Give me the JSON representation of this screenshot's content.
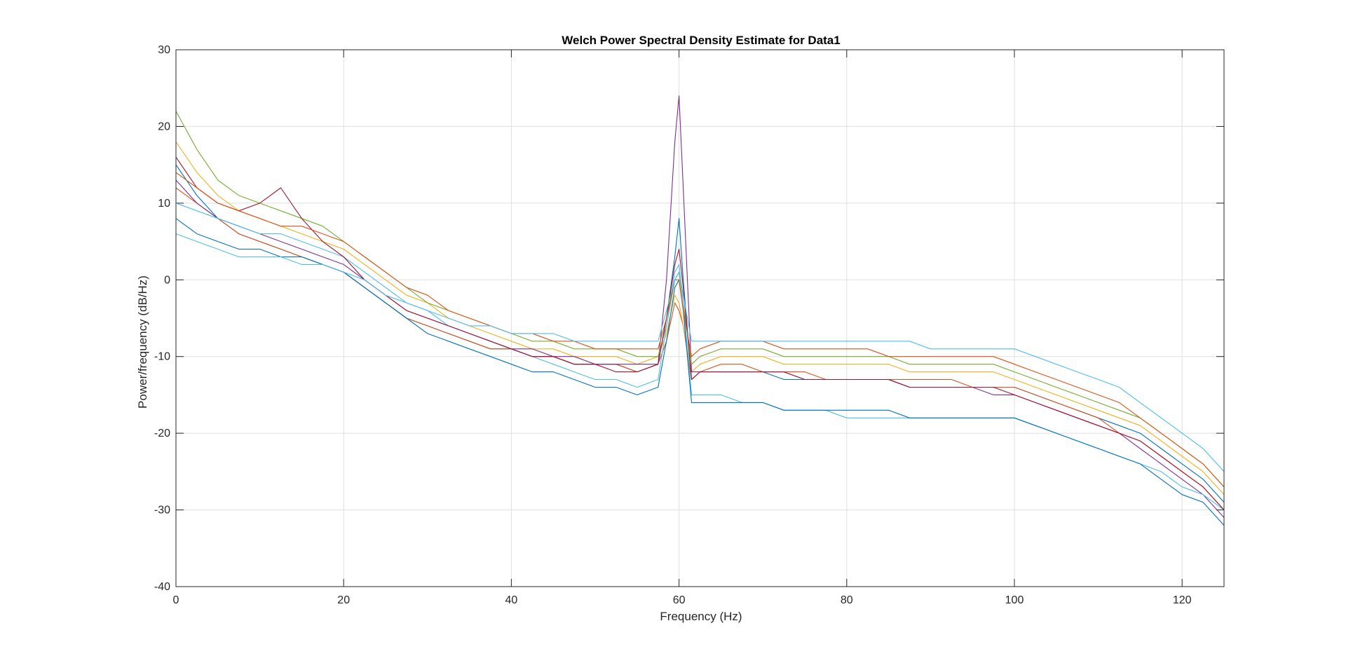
{
  "chart_data": {
    "type": "line",
    "title": "Welch Power Spectral Density Estimate for Data1",
    "xlabel": "Frequency (Hz)",
    "ylabel": "Power/frequency (dB/Hz)",
    "xlim": [
      0,
      125
    ],
    "ylim": [
      -40,
      30
    ],
    "xticks": [
      0,
      20,
      40,
      60,
      80,
      100,
      120
    ],
    "yticks": [
      -40,
      -30,
      -20,
      -10,
      0,
      10,
      20,
      30
    ],
    "grid": true,
    "legend": "none",
    "x": [
      0,
      2.5,
      5,
      7.5,
      10,
      12.5,
      15,
      17.5,
      20,
      22.5,
      25,
      27.5,
      30,
      32.5,
      35,
      37.5,
      40,
      42.5,
      45,
      47.5,
      50,
      52.5,
      55,
      57.5,
      58.5,
      59.5,
      60,
      60.5,
      61.5,
      62.5,
      65,
      67.5,
      70,
      72.5,
      75,
      77.5,
      80,
      82.5,
      85,
      87.5,
      90,
      92.5,
      95,
      97.5,
      100,
      102.5,
      105,
      107.5,
      110,
      112.5,
      115,
      117.5,
      120,
      122.5,
      125
    ],
    "series": [
      {
        "color": "#0072BD",
        "values": [
          15,
          11,
          8,
          6,
          5,
          4,
          3,
          2,
          1,
          -1,
          -3,
          -5,
          -6,
          -7,
          -8,
          -9,
          -9,
          -10,
          -10,
          -11,
          -11,
          -11,
          -12,
          -11,
          -5,
          3,
          8,
          0,
          -13,
          -12,
          -12,
          -12,
          -12,
          -13,
          -13,
          -13,
          -13,
          -13,
          -13,
          -14,
          -14,
          -14,
          -14,
          -14,
          -14,
          -15,
          -16,
          -17,
          -18,
          -19,
          -20,
          -22,
          -24,
          -26,
          -29
        ]
      },
      {
        "color": "#D95319",
        "values": [
          12,
          10,
          8,
          6,
          5,
          4,
          3,
          2,
          1,
          -1,
          -3,
          -5,
          -6,
          -7,
          -8,
          -9,
          -9,
          -10,
          -10,
          -11,
          -11,
          -11,
          -12,
          -11,
          -8,
          -3,
          -4,
          -6,
          -13,
          -12,
          -11,
          -11,
          -12,
          -12,
          -12,
          -13,
          -13,
          -13,
          -13,
          -13,
          -13,
          -13,
          -14,
          -14,
          -14,
          -15,
          -16,
          -17,
          -18,
          -20,
          -21,
          -23,
          -25,
          -27,
          -30
        ]
      },
      {
        "color": "#EDB120",
        "values": [
          18,
          14,
          11,
          9,
          8,
          7,
          6,
          5,
          4,
          2,
          0,
          -2,
          -3,
          -5,
          -6,
          -7,
          -8,
          -9,
          -9,
          -10,
          -10,
          -10,
          -11,
          -10,
          -7,
          -2,
          -3,
          -6,
          -12,
          -11,
          -10,
          -10,
          -10,
          -11,
          -11,
          -11,
          -11,
          -11,
          -11,
          -12,
          -12,
          -12,
          -12,
          -12,
          -13,
          -14,
          -15,
          -16,
          -17,
          -18,
          -19,
          -21,
          -23,
          -25,
          -28
        ]
      },
      {
        "color": "#7E2F8E",
        "values": [
          13,
          10,
          8,
          7,
          6,
          5,
          4,
          3,
          2,
          0,
          -2,
          -4,
          -5,
          -6,
          -7,
          -8,
          -9,
          -9,
          -10,
          -10,
          -11,
          -11,
          -11,
          -11,
          0,
          18,
          24,
          12,
          -12,
          -12,
          -12,
          -12,
          -12,
          -12,
          -13,
          -13,
          -13,
          -13,
          -13,
          -14,
          -14,
          -14,
          -14,
          -15,
          -15,
          -16,
          -17,
          -18,
          -19,
          -20,
          -22,
          -24,
          -26,
          -28,
          -31
        ]
      },
      {
        "color": "#77AC30",
        "values": [
          22,
          17,
          13,
          11,
          10,
          9,
          8,
          7,
          5,
          3,
          1,
          -1,
          -3,
          -4,
          -5,
          -6,
          -7,
          -8,
          -8,
          -9,
          -9,
          -9,
          -10,
          -10,
          -6,
          0,
          1,
          -3,
          -11,
          -10,
          -9,
          -9,
          -9,
          -10,
          -10,
          -10,
          -10,
          -10,
          -10,
          -11,
          -11,
          -11,
          -11,
          -11,
          -12,
          -13,
          -14,
          -15,
          -16,
          -17,
          -18,
          -20,
          -22,
          -24,
          -27
        ]
      },
      {
        "color": "#4DBEEE",
        "values": [
          10,
          9,
          8,
          7,
          6,
          6,
          5,
          4,
          3,
          1,
          -1,
          -3,
          -4,
          -6,
          -7,
          -8,
          -9,
          -10,
          -11,
          -12,
          -13,
          -13,
          -14,
          -13,
          -6,
          1,
          2,
          -3,
          -15,
          -15,
          -15,
          -16,
          -16,
          -17,
          -17,
          -17,
          -18,
          -18,
          -18,
          -18,
          -18,
          -18,
          -18,
          -18,
          -18,
          -19,
          -20,
          -21,
          -22,
          -23,
          -24,
          -25,
          -27,
          -28,
          -30
        ]
      },
      {
        "color": "#A2142F",
        "values": [
          16,
          12,
          10,
          9,
          10,
          12,
          8,
          5,
          3,
          0,
          -2,
          -4,
          -5,
          -6,
          -7,
          -8,
          -9,
          -10,
          -10,
          -11,
          -11,
          -12,
          -12,
          -11,
          -5,
          2,
          4,
          -1,
          -13,
          -12,
          -12,
          -12,
          -12,
          -12,
          -13,
          -13,
          -13,
          -13,
          -13,
          -14,
          -14,
          -14,
          -14,
          -14,
          -15,
          -16,
          -17,
          -18,
          -19,
          -20,
          -21,
          -23,
          -25,
          -27,
          -30
        ]
      },
      {
        "color": "#0072BD",
        "values": [
          8,
          6,
          5,
          4,
          4,
          3,
          3,
          2,
          1,
          -1,
          -3,
          -5,
          -7,
          -8,
          -9,
          -10,
          -11,
          -12,
          -12,
          -13,
          -14,
          -14,
          -15,
          -14,
          -8,
          -1,
          0,
          -4,
          -16,
          -16,
          -16,
          -16,
          -16,
          -17,
          -17,
          -17,
          -17,
          -17,
          -17,
          -18,
          -18,
          -18,
          -18,
          -18,
          -18,
          -19,
          -20,
          -21,
          -22,
          -23,
          -24,
          -26,
          -28,
          -29,
          -32
        ]
      },
      {
        "color": "#D95319",
        "values": [
          14,
          12,
          10,
          9,
          8,
          7,
          7,
          6,
          5,
          3,
          1,
          -1,
          -2,
          -4,
          -5,
          -6,
          -7,
          -7,
          -8,
          -8,
          -9,
          -9,
          -9,
          -9,
          -5,
          0,
          0,
          -4,
          -10,
          -9,
          -8,
          -8,
          -8,
          -9,
          -9,
          -9,
          -9,
          -9,
          -10,
          -10,
          -10,
          -10,
          -10,
          -10,
          -11,
          -12,
          -13,
          -14,
          -15,
          -16,
          -18,
          -20,
          -22,
          -24,
          -27
        ]
      },
      {
        "color": "#4DBEEE",
        "values": [
          6,
          5,
          4,
          3,
          3,
          3,
          2,
          2,
          1,
          0,
          -2,
          -3,
          -4,
          -5,
          -6,
          -6,
          -7,
          -7,
          -7,
          -8,
          -8,
          -8,
          -8,
          -8,
          -4,
          0,
          1,
          -2,
          -8,
          -8,
          -8,
          -8,
          -8,
          -8,
          -8,
          -8,
          -8,
          -8,
          -8,
          -8,
          -9,
          -9,
          -9,
          -9,
          -9,
          -10,
          -11,
          -12,
          -13,
          -14,
          -16,
          -18,
          -20,
          -22,
          -25
        ]
      }
    ]
  }
}
